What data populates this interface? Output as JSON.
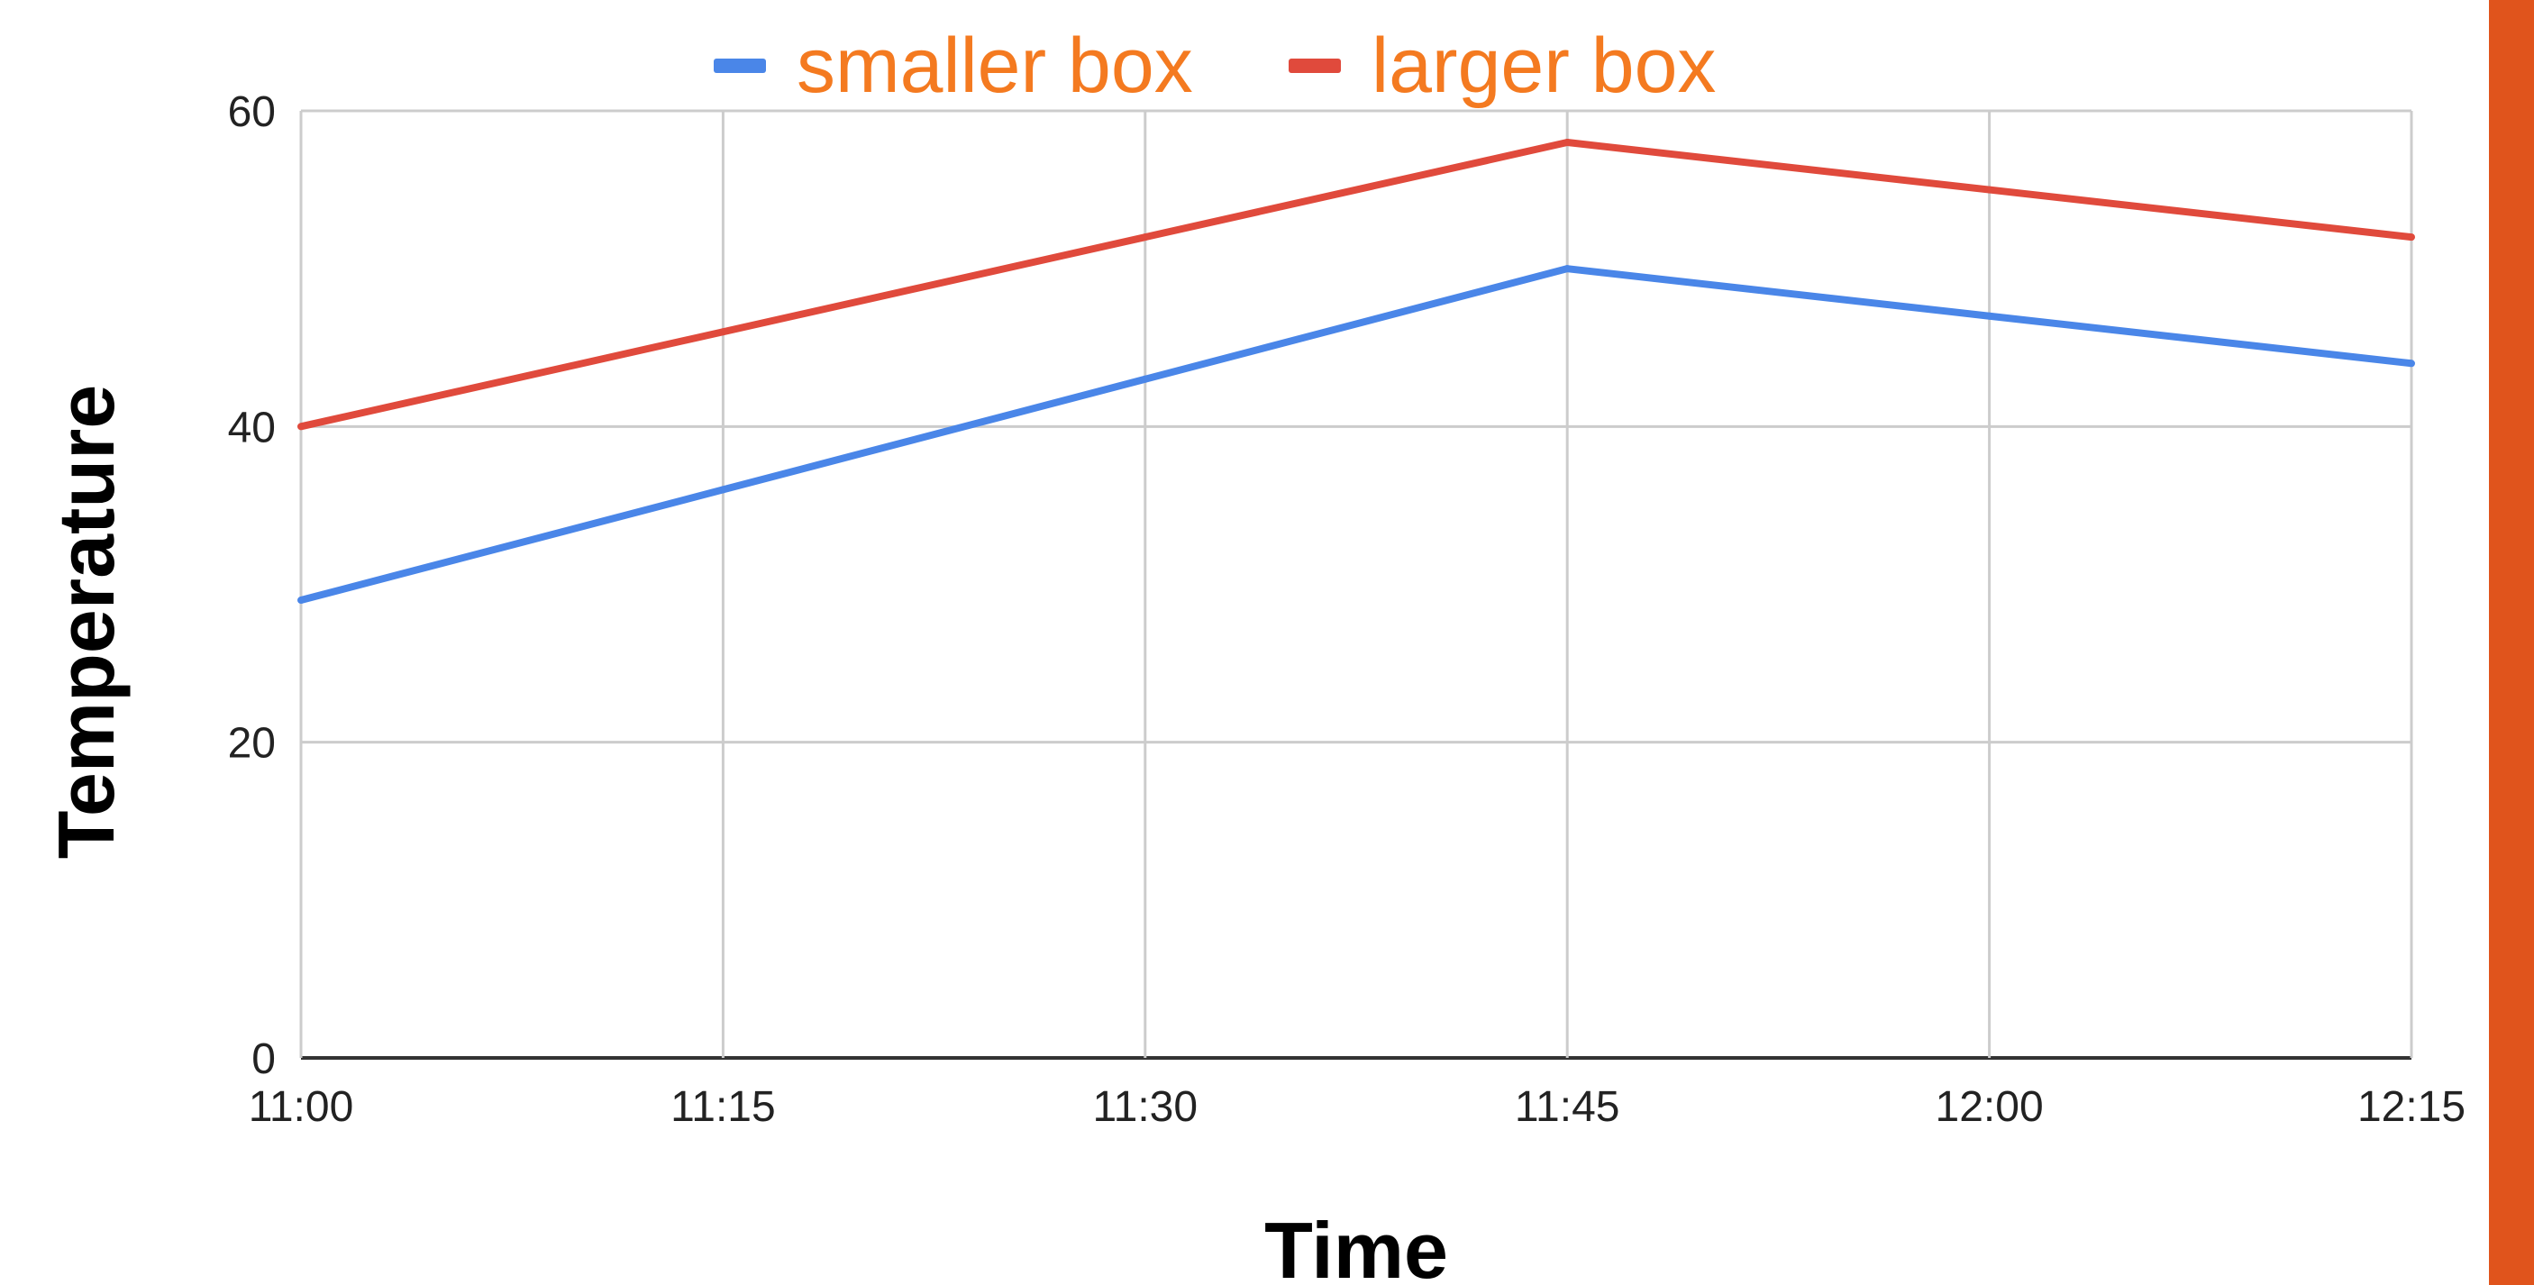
{
  "chart_data": {
    "type": "line",
    "x": [
      "11:00",
      "11:15",
      "11:30",
      "11:45",
      "12:00",
      "12:15"
    ],
    "series": [
      {
        "name": "smaller box",
        "color": "#4a86e8",
        "values": [
          29,
          36,
          43,
          50,
          47,
          44
        ]
      },
      {
        "name": "larger box",
        "color": "#e04a3c",
        "values": [
          40,
          46,
          52,
          58,
          55,
          52
        ]
      }
    ],
    "xlabel": "Time",
    "ylabel": "Temperature",
    "ylim": [
      0,
      60
    ],
    "yticks": [
      0,
      20,
      40,
      60
    ],
    "grid": true,
    "legend": {
      "position": "top-center",
      "text_color": "#f47a20"
    }
  },
  "accent_color": "#e0541c"
}
